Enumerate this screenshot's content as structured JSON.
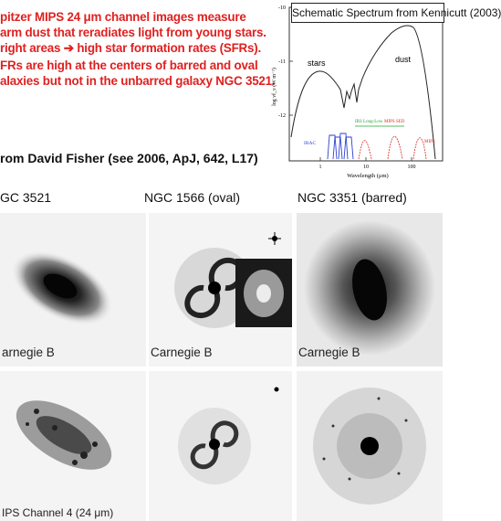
{
  "bullets": {
    "one": [
      "pitzer MIPS 24 μm channel images measure",
      "arm dust that reradiates light from young stars.",
      "right areas ➔ high star formation rates (SFRs)."
    ],
    "two": [
      "FRs are high at the centers of barred and oval",
      "alaxies but not in the unbarred galaxy NGC 3521."
    ]
  },
  "credit": "rom David Fisher (see 2006, ApJ, 642, L17)",
  "columns": [
    "GC 3521",
    "NGC 1566  (oval)",
    "NGC 3351  (barred)"
  ],
  "panel_labels": {
    "c1": "arnegie B",
    "c2": "Carnegie B",
    "c3": "Carnegie B",
    "bottom": "IPS Channel 4 (24 μm)"
  },
  "spectrum": {
    "title": "Schematic Spectrum from Kennicutt (2003)",
    "stars_label": "stars",
    "dust_label": "dust",
    "ylabel": "log νf_ν (W m⁻²)",
    "xlabel": "Wavelength (μm)",
    "y_ticks": [
      "-10",
      "-11",
      "-12"
    ],
    "x_ticks": [
      "1",
      "10",
      "100"
    ],
    "filters": {
      "irac": "IRAC",
      "irs": "IRS Long-Low",
      "mips_ips": "MIPS SED",
      "mips": "MIPS"
    },
    "colors": {
      "irac": "#2a3fd0",
      "irs": "#1fa82a",
      "mips": "#e02a2a"
    }
  }
}
